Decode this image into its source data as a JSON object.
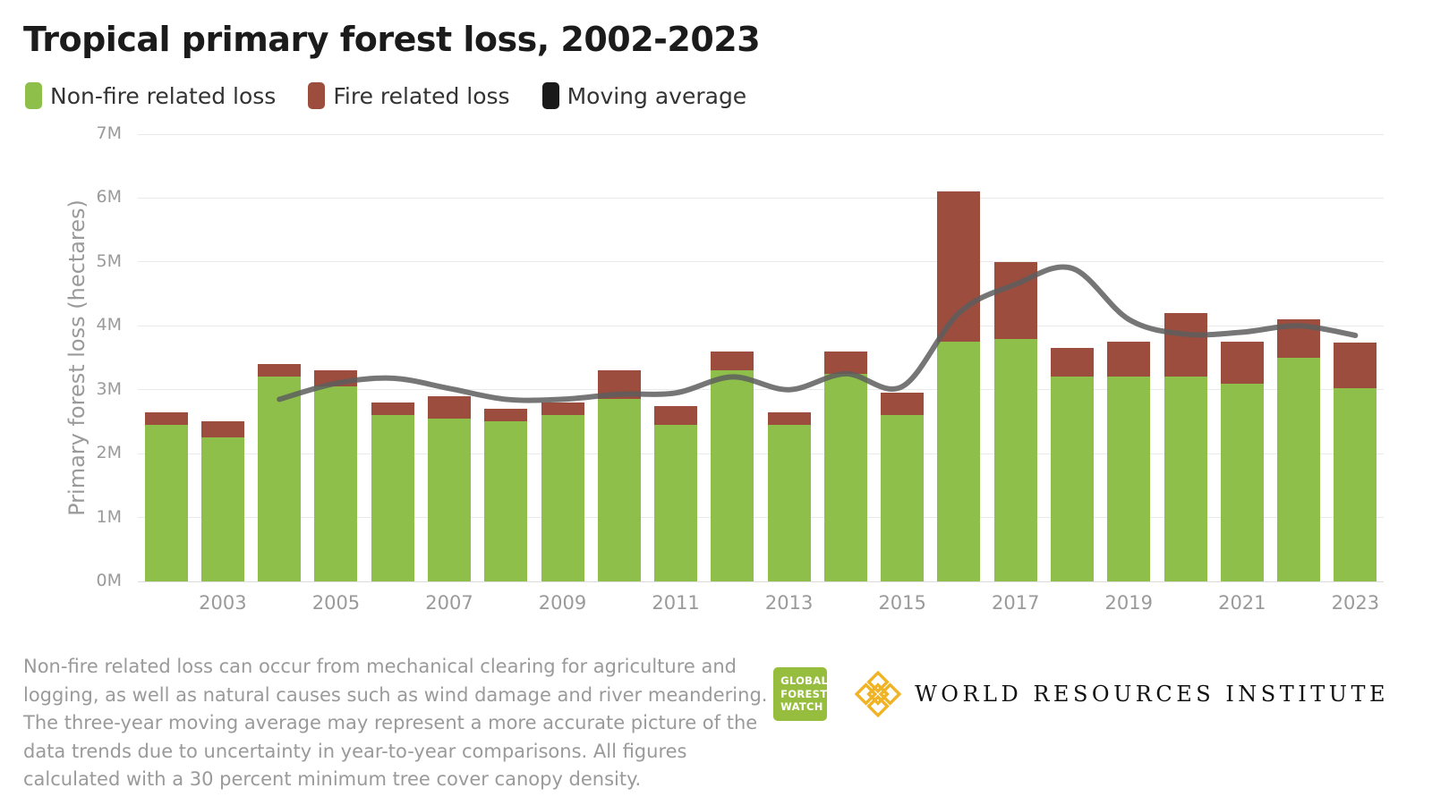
{
  "title": "Tropical primary forest loss, 2002-2023",
  "legend": [
    {
      "label": "Non-fire related loss",
      "color": "#8fbf4b"
    },
    {
      "label": "Fire related loss",
      "color": "#9d4d3d"
    },
    {
      "label": "Moving average",
      "color": "#1a1a1a"
    }
  ],
  "chart_data": {
    "type": "bar",
    "stacked": true,
    "title": "Tropical primary forest loss, 2002-2023",
    "ylabel": "Primary forest loss (hectares)",
    "units": "million hectares",
    "ylim": [
      0,
      7
    ],
    "ytick_labels": [
      "0M",
      "1M",
      "2M",
      "3M",
      "4M",
      "5M",
      "6M",
      "7M"
    ],
    "grid": true,
    "legend_position": "top",
    "categories": [
      2002,
      2003,
      2004,
      2005,
      2006,
      2007,
      2008,
      2009,
      2010,
      2011,
      2012,
      2013,
      2014,
      2015,
      2016,
      2017,
      2018,
      2019,
      2020,
      2021,
      2022,
      2023
    ],
    "xtick_labels": [
      "2003",
      "2005",
      "2007",
      "2009",
      "2011",
      "2013",
      "2015",
      "2017",
      "2019",
      "2021",
      "2023"
    ],
    "series": [
      {
        "name": "Non-fire related loss",
        "color": "#8fbf4b",
        "values": [
          2.45,
          2.25,
          3.2,
          3.05,
          2.6,
          2.55,
          2.5,
          2.6,
          2.85,
          2.45,
          3.3,
          2.45,
          3.25,
          2.6,
          3.75,
          3.8,
          3.2,
          3.2,
          3.2,
          3.1,
          3.5,
          3.02
        ]
      },
      {
        "name": "Fire related loss",
        "color": "#9d4d3d",
        "values": [
          0.2,
          0.25,
          0.2,
          0.25,
          0.2,
          0.35,
          0.2,
          0.2,
          0.45,
          0.3,
          0.3,
          0.2,
          0.35,
          0.35,
          2.35,
          1.2,
          0.45,
          0.55,
          1.0,
          0.65,
          0.6,
          0.72
        ]
      }
    ],
    "moving_average": {
      "name": "Moving average",
      "color": "#5e5e5e",
      "values": [
        null,
        null,
        2.85,
        3.1,
        3.18,
        3.02,
        2.85,
        2.85,
        2.93,
        2.95,
        3.2,
        3.0,
        3.25,
        3.05,
        4.2,
        4.65,
        4.9,
        4.1,
        3.87,
        3.9,
        4.0,
        3.85
      ]
    }
  },
  "footer": {
    "note": "Non-fire related loss can occur from mechanical clearing for agriculture and logging, as well as natural causes such as wind damage and river meandering. The three-year moving average may represent a more accurate picture of the data trends due to uncertainty in year-to-year comparisons. All figures calculated with a 30 percent minimum tree cover canopy density."
  },
  "logos": {
    "gfw_lines": [
      "GLOBAL",
      "FOREST",
      "WATCH"
    ],
    "wri": "WORLD RESOURCES INSTITUTE"
  }
}
